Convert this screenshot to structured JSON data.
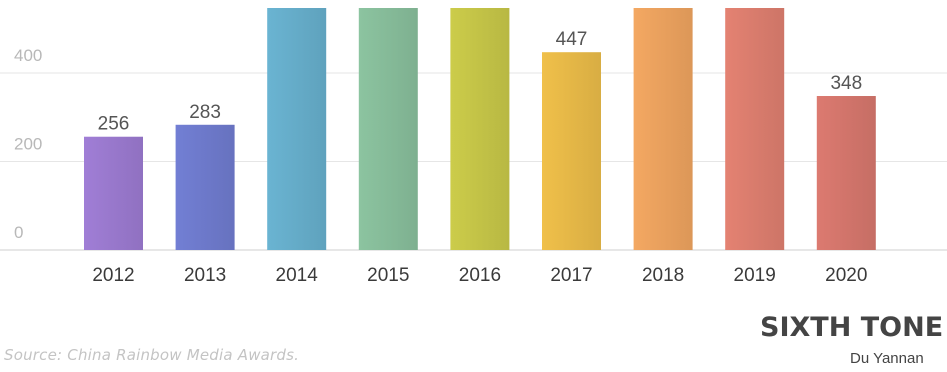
{
  "chart_data": {
    "type": "bar",
    "categories": [
      "2012",
      "2013",
      "2014",
      "2015",
      "2016",
      "2017",
      "2018",
      "2019",
      "2020"
    ],
    "values": [
      256,
      283,
      560,
      560,
      560,
      447,
      560,
      560,
      348
    ],
    "data_labels": [
      "256",
      "283",
      "",
      "",
      "",
      "447",
      "",
      "",
      "348"
    ],
    "bar_colors": [
      "#a07ed6",
      "#727fd4",
      "#6ab4d2",
      "#8cc4a0",
      "#cccc4a",
      "#f0c04a",
      "#f4a862",
      "#e48272",
      "#dc7a70"
    ],
    "y_ticks": [
      0,
      200,
      400
    ],
    "y_tick_labels": [
      "0",
      "200",
      "400"
    ],
    "grid": true,
    "title": "",
    "xlabel": "",
    "ylabel": ""
  },
  "footer": {
    "source": "Source: China Rainbow Media Awards.",
    "brand": "SIXTH TONE",
    "author": "Du Yannan"
  }
}
